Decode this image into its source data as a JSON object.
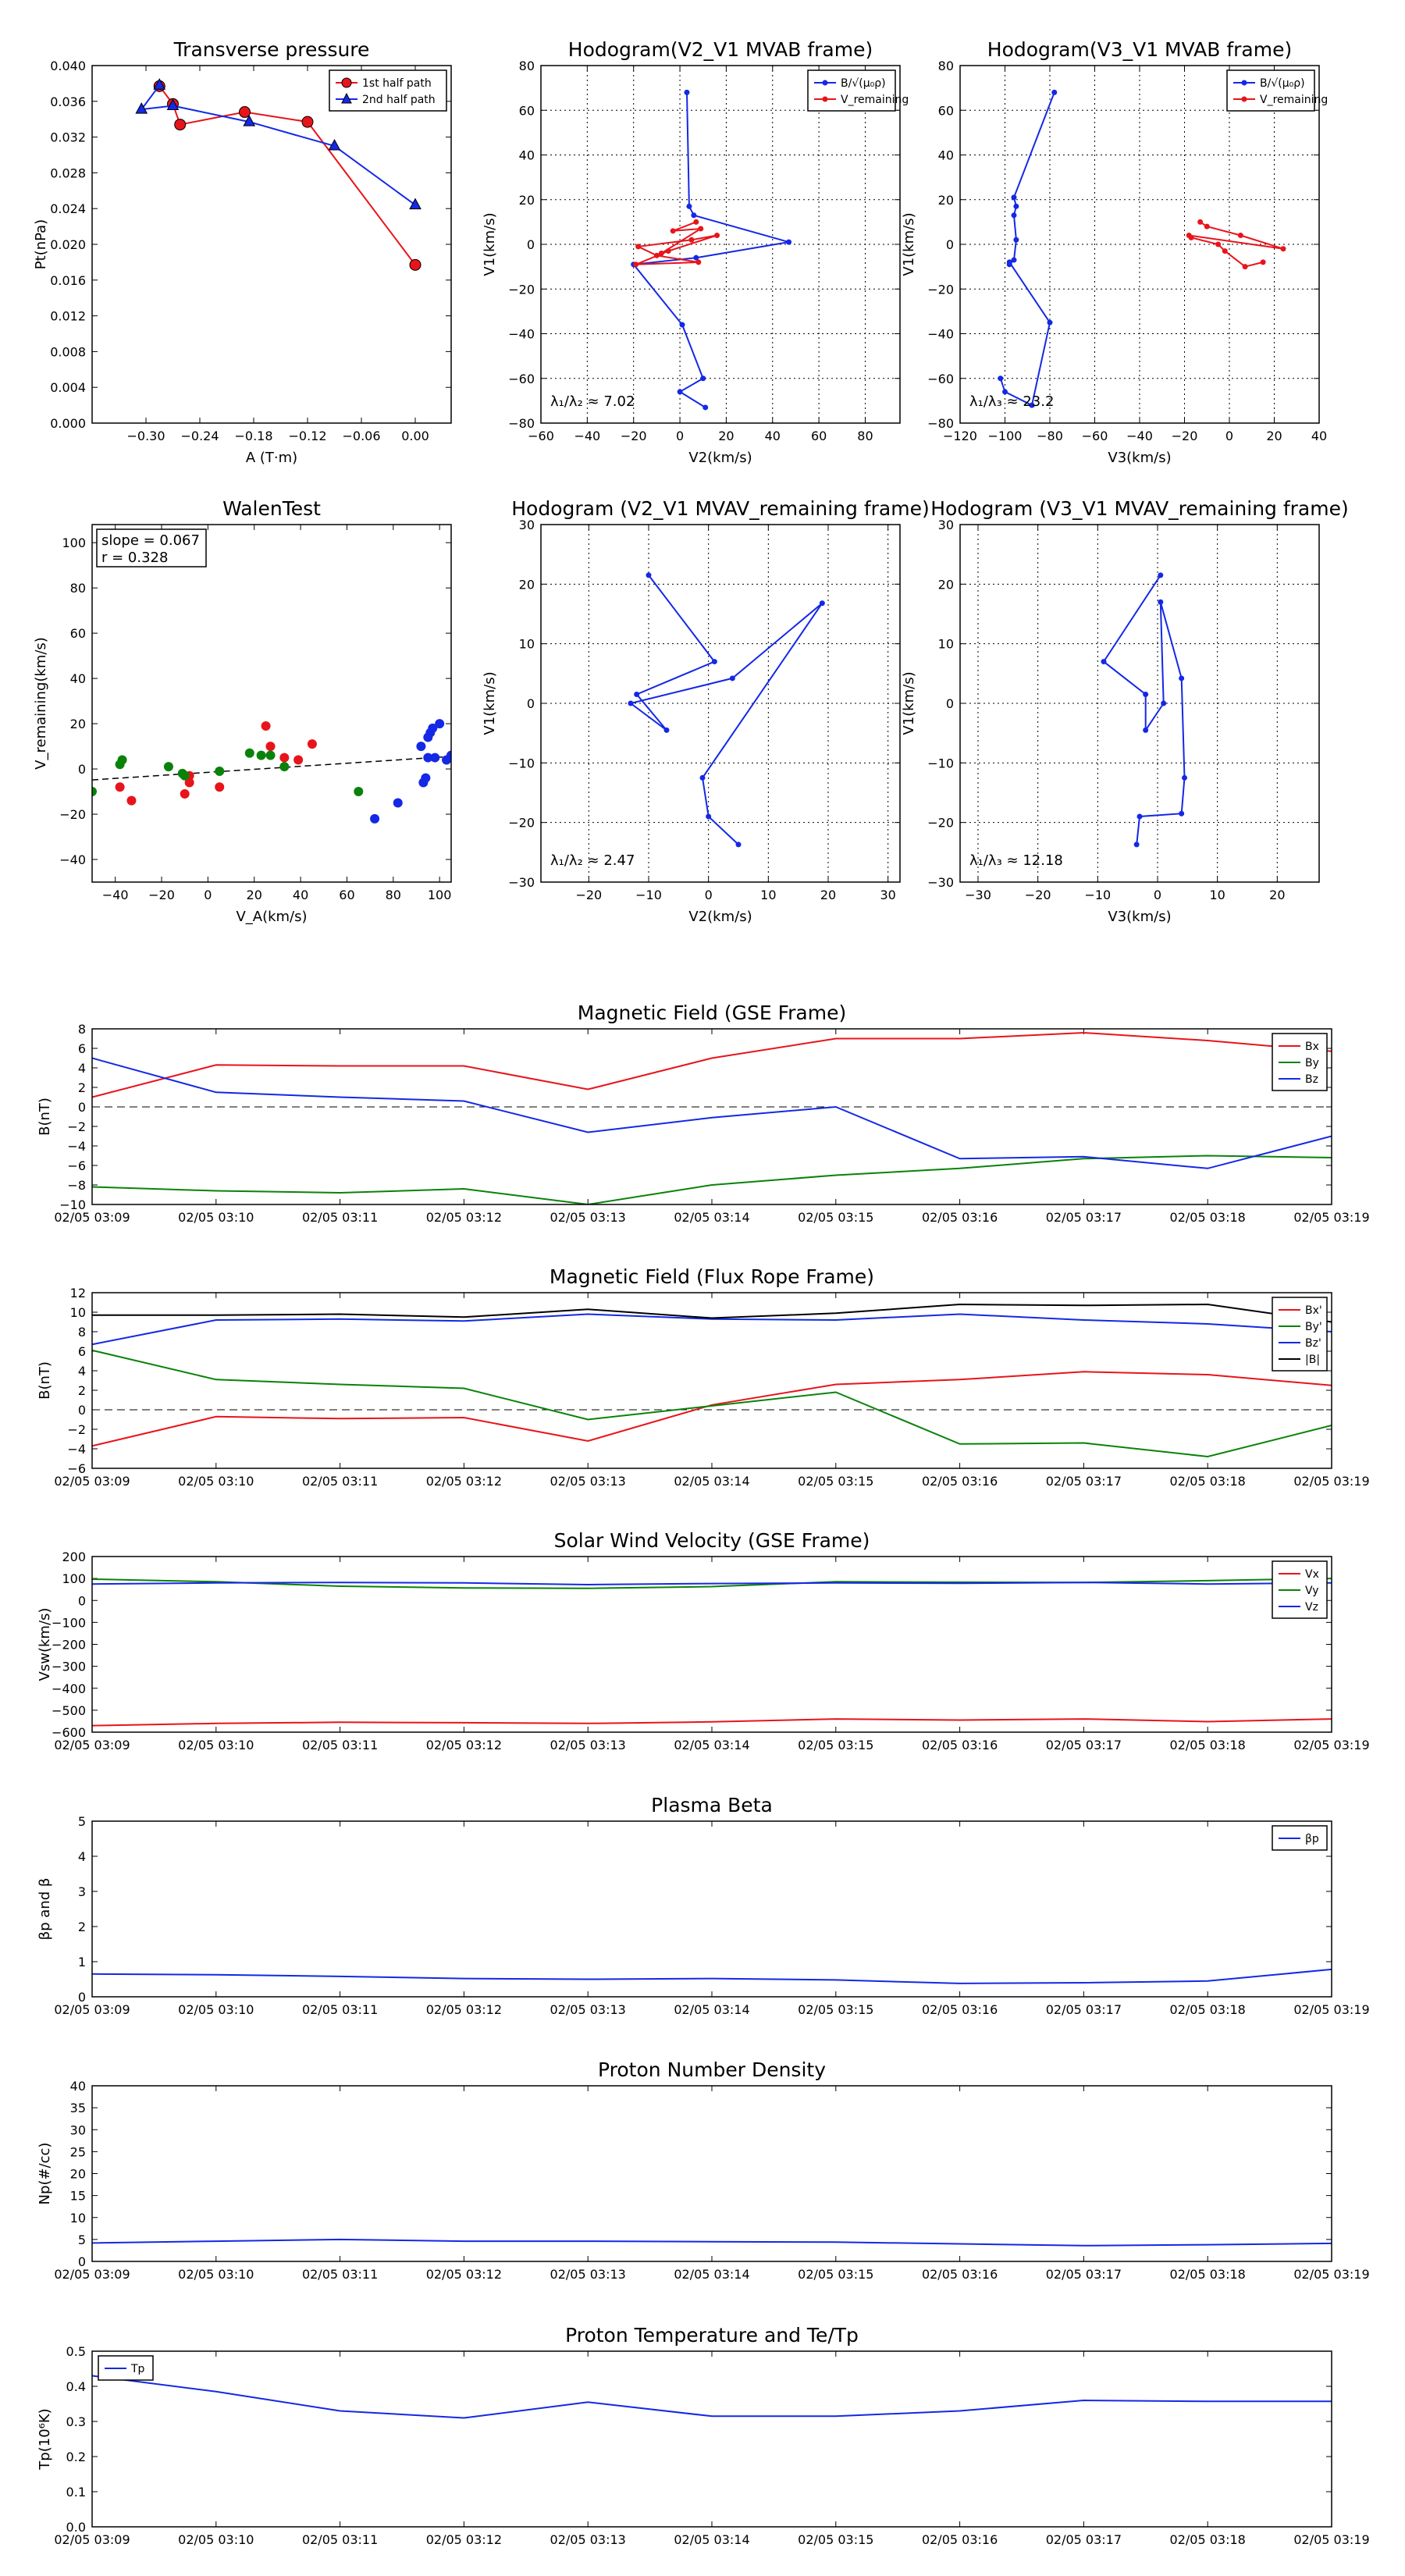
{
  "colors": {
    "red": "#e8141b",
    "blue": "#1428e6",
    "green": "#0a820a",
    "black": "#000000"
  },
  "chart_data": [
    {
      "id": "tp",
      "type": "line",
      "title": "Transverse pressure",
      "xlabel": "A (T·m)",
      "ylabel": "Pt(nPa)",
      "xlim": [
        -0.36,
        0.04
      ],
      "ylim": [
        0,
        0.04
      ],
      "xticks": [
        -0.3,
        -0.24,
        -0.18,
        -0.12,
        -0.06,
        0.0
      ],
      "xtick_labels": [
        "−0.30",
        "−0.24",
        "−0.18",
        "−0.12",
        "−0.06",
        "0.00"
      ],
      "yticks": [
        0,
        0.004,
        0.008,
        0.012,
        0.016,
        0.02,
        0.024,
        0.028,
        0.032,
        0.036,
        0.04
      ],
      "ytick_labels": [
        "0.000",
        "0.004",
        "0.008",
        "0.012",
        "0.016",
        "0.020",
        "0.024",
        "0.028",
        "0.032",
        "0.036",
        "0.040"
      ],
      "grid": false,
      "legend_position": "top-right",
      "series": [
        {
          "name": "1st half path",
          "color": "red",
          "marker": "circle",
          "x": [
            -0.285,
            -0.27,
            -0.262,
            -0.19,
            -0.12,
            0.0
          ],
          "y": [
            0.0377,
            0.0357,
            0.0334,
            0.0348,
            0.0337,
            0.0177
          ]
        },
        {
          "name": "2nd half path",
          "color": "blue",
          "marker": "triangle",
          "x": [
            -0.285,
            -0.305,
            -0.27,
            -0.185,
            -0.09,
            0.0
          ],
          "y": [
            0.0378,
            0.0351,
            0.0355,
            0.0337,
            0.031,
            0.0244
          ]
        }
      ]
    },
    {
      "id": "h1",
      "type": "line",
      "title": "Hodogram(V2_V1 MVAB frame)",
      "xlabel": "V2(km/s)",
      "ylabel": "V1(km/s)",
      "xlim": [
        -60,
        95
      ],
      "ylim": [
        -80,
        80
      ],
      "xticks": [
        -60,
        -40,
        -20,
        0,
        20,
        40,
        60,
        80
      ],
      "xtick_labels": [
        "−60",
        "−40",
        "−20",
        "0",
        "20",
        "40",
        "60",
        "80"
      ],
      "yticks": [
        -80,
        -60,
        -40,
        -20,
        0,
        20,
        40,
        60,
        80
      ],
      "ytick_labels": [
        "−80",
        "−60",
        "−40",
        "−20",
        "0",
        "20",
        "40",
        "60",
        "80"
      ],
      "grid": true,
      "legend_position": "top-right",
      "annotation": "λ₁/λ₂ ≈ 7.02",
      "series": [
        {
          "name": "B/√(μ₀ρ)",
          "color": "blue",
          "marker": "dot",
          "x": [
            3,
            4,
            6,
            47,
            7,
            -20,
            1,
            10,
            0,
            11
          ],
          "y": [
            68,
            17,
            13,
            1,
            -6,
            -9,
            -36,
            -60,
            -66,
            -73
          ]
        },
        {
          "name": "V_remaining",
          "color": "red",
          "marker": "dot",
          "x": [
            7,
            -3,
            9,
            -8,
            16,
            5,
            -18,
            -10,
            8,
            -19,
            -5
          ],
          "y": [
            10,
            6,
            7,
            -4,
            4,
            2,
            -1,
            -5,
            -8,
            -9,
            -3
          ]
        }
      ]
    },
    {
      "id": "h2",
      "type": "line",
      "title": "Hodogram(V3_V1 MVAB frame)",
      "xlabel": "V3(km/s)",
      "ylabel": "V1(km/s)",
      "xlim": [
        -120,
        40
      ],
      "ylim": [
        -80,
        80
      ],
      "xticks": [
        -120,
        -100,
        -80,
        -60,
        -40,
        -20,
        0,
        20,
        40
      ],
      "xtick_labels": [
        "−120",
        "−100",
        "−80",
        "−60",
        "−40",
        "−20",
        "0",
        "20",
        "40"
      ],
      "yticks": [
        -80,
        -60,
        -40,
        -20,
        0,
        20,
        40,
        60,
        80
      ],
      "ytick_labels": [
        "−80",
        "−60",
        "−40",
        "−20",
        "0",
        "20",
        "40",
        "60",
        "80"
      ],
      "grid": true,
      "legend_position": "top-right",
      "annotation": "λ₁/λ₃ ≈ 23.2",
      "series": [
        {
          "name": "B/√(μ₀ρ)",
          "color": "blue",
          "marker": "dot",
          "x": [
            -78,
            -96,
            -95,
            -96,
            -95,
            -96,
            -98,
            -98,
            -80,
            -88,
            -100,
            -102
          ],
          "y": [
            68,
            21,
            17,
            13,
            2,
            -7,
            -9,
            -8,
            -35,
            -72,
            -66,
            -60
          ]
        },
        {
          "name": "V_remaining",
          "color": "red",
          "marker": "dot",
          "x": [
            -13,
            -10,
            5,
            24,
            -18,
            -17,
            -5,
            -2,
            7,
            15
          ],
          "y": [
            10,
            8,
            4,
            -2,
            4,
            3,
            0,
            -3,
            -10,
            -8
          ]
        }
      ]
    },
    {
      "id": "walen",
      "type": "scatter",
      "title": "WalenTest",
      "xlabel": "V_A(km/s)",
      "ylabel": "V_remaining(km/s)",
      "xlim": [
        -50,
        105
      ],
      "ylim": [
        -50,
        108
      ],
      "xticks": [
        -40,
        -20,
        0,
        20,
        40,
        60,
        80,
        100
      ],
      "xtick_labels": [
        "−40",
        "−20",
        "0",
        "20",
        "40",
        "60",
        "80",
        "100"
      ],
      "yticks": [
        -40,
        -20,
        0,
        20,
        40,
        60,
        80,
        100
      ],
      "ytick_labels": [
        "−40",
        "−20",
        "0",
        "20",
        "40",
        "60",
        "80",
        "100"
      ],
      "grid": false,
      "legend_position": "top-left",
      "slope_text": "slope = 0.067",
      "r_text": "r = 0.328",
      "fit": {
        "slope": 0.067,
        "intercept": -1.5
      },
      "series": [
        {
          "name": "red",
          "color": "red",
          "x": [
            -38,
            -33,
            -10,
            -8,
            -8,
            5,
            25,
            27,
            33,
            39,
            45
          ],
          "y": [
            -8,
            -14,
            -11,
            -6,
            -3,
            -8,
            19,
            10,
            5,
            4,
            11
          ]
        },
        {
          "name": "green",
          "color": "green",
          "x": [
            -38,
            -37,
            -17,
            -11,
            -10,
            5,
            18,
            23,
            27,
            33,
            65,
            -50
          ],
          "y": [
            2,
            4,
            1,
            -2,
            -3,
            -1,
            7,
            6,
            6,
            1,
            -10,
            -10
          ]
        },
        {
          "name": "blue",
          "color": "blue",
          "x": [
            72,
            82,
            93,
            94,
            95,
            96,
            97,
            98,
            100,
            103,
            105,
            92,
            95
          ],
          "y": [
            -22,
            -15,
            -6,
            -4,
            14,
            16,
            18,
            5,
            20,
            4,
            6,
            10,
            5
          ]
        }
      ]
    },
    {
      "id": "h3",
      "type": "line",
      "title": "Hodogram (V2_V1 MVAV_remaining frame)",
      "xlabel": "V2(km/s)",
      "ylabel": "V1(km/s)",
      "xlim": [
        -28,
        32
      ],
      "ylim": [
        -30,
        30
      ],
      "xticks": [
        -20,
        -10,
        0,
        10,
        20,
        30
      ],
      "xtick_labels": [
        "−20",
        "−10",
        "0",
        "10",
        "20",
        "30"
      ],
      "yticks": [
        -30,
        -20,
        -10,
        0,
        10,
        20,
        30
      ],
      "ytick_labels": [
        "−30",
        "−20",
        "−10",
        "0",
        "10",
        "20",
        "30"
      ],
      "grid": true,
      "legend_position": "none",
      "annotation": "λ₁/λ₂ ≈ 2.47",
      "series": [
        {
          "name": "V_remaining",
          "color": "blue",
          "marker": "dot",
          "x": [
            -10,
            1,
            -12,
            -7,
            -13,
            4,
            19,
            -1,
            0,
            5
          ],
          "y": [
            21.5,
            7,
            1.5,
            -4.5,
            0,
            4.2,
            16.8,
            -12.5,
            -19,
            -23.7
          ]
        }
      ]
    },
    {
      "id": "h4",
      "type": "line",
      "title": "Hodogram (V3_V1 MVAV_remaining frame)",
      "xlabel": "V3(km/s)",
      "ylabel": "V1(km/s)",
      "xlim": [
        -33,
        27
      ],
      "ylim": [
        -30,
        30
      ],
      "xticks": [
        -30,
        -20,
        -10,
        0,
        10,
        20
      ],
      "xtick_labels": [
        "−30",
        "−20",
        "−10",
        "0",
        "10",
        "20"
      ],
      "yticks": [
        -30,
        -20,
        -10,
        0,
        10,
        20,
        30
      ],
      "ytick_labels": [
        "−30",
        "−20",
        "−10",
        "0",
        "10",
        "20",
        "30"
      ],
      "grid": true,
      "legend_position": "none",
      "annotation": "λ₁/λ₃ ≈ 12.18",
      "series": [
        {
          "name": "V_remaining",
          "color": "blue",
          "marker": "dot",
          "x": [
            0.5,
            -9,
            -2,
            -2,
            1,
            0.5,
            4,
            4.5,
            4,
            -3,
            -3.5
          ],
          "y": [
            21.5,
            7,
            1.5,
            -4.5,
            0,
            17,
            4.2,
            -12.5,
            -18.5,
            -19,
            -23.7
          ]
        }
      ]
    },
    {
      "id": "ts1",
      "type": "line",
      "title": "Magnetic Field (GSE Frame)",
      "ylabel": "B(nT)",
      "ylim": [
        -10,
        8
      ],
      "yticks": [
        -10,
        -8,
        -6,
        -4,
        -2,
        0,
        2,
        4,
        6,
        8
      ],
      "ytick_labels": [
        "−10",
        "−8",
        "−6",
        "−4",
        "−2",
        "0",
        "2",
        "4",
        "6",
        "8"
      ],
      "zero_line": true,
      "legend_position": "top-right",
      "series": [
        {
          "name": "Bx",
          "color": "red",
          "values": [
            1,
            4.3,
            4.2,
            4.2,
            1.8,
            5,
            7,
            7,
            7.6,
            6.8,
            5.7
          ]
        },
        {
          "name": "By",
          "color": "green",
          "values": [
            -8.2,
            -8.6,
            -8.8,
            -8.4,
            -10,
            -8,
            -7,
            -6.3,
            -5.3,
            -5,
            -5.2
          ]
        },
        {
          "name": "Bz",
          "color": "blue",
          "values": [
            5,
            1.5,
            1,
            0.6,
            -2.6,
            -1.1,
            0,
            -5.3,
            -5.1,
            -6.3,
            -3
          ]
        }
      ]
    },
    {
      "id": "ts2",
      "type": "line",
      "title": "Magnetic Field (Flux Rope Frame)",
      "ylabel": "B(nT)",
      "ylim": [
        -6,
        12
      ],
      "yticks": [
        -6,
        -4,
        -2,
        0,
        2,
        4,
        6,
        8,
        10,
        12
      ],
      "ytick_labels": [
        "−6",
        "−4",
        "−2",
        "0",
        "2",
        "4",
        "6",
        "8",
        "10",
        "12"
      ],
      "zero_line": true,
      "legend_position": "top-right",
      "series": [
        {
          "name": "Bx'",
          "color": "red",
          "values": [
            -3.7,
            -0.7,
            -0.9,
            -0.8,
            -3.2,
            0.5,
            2.6,
            3.1,
            3.9,
            3.6,
            2.5
          ]
        },
        {
          "name": "By'",
          "color": "green",
          "values": [
            6.1,
            3.1,
            2.6,
            2.2,
            -1,
            0.4,
            1.8,
            -3.5,
            -3.4,
            -4.8,
            -1.6
          ]
        },
        {
          "name": "Bz'",
          "color": "blue",
          "values": [
            6.7,
            9.2,
            9.3,
            9.1,
            9.8,
            9.3,
            9.2,
            9.8,
            9.2,
            8.8,
            8
          ]
        },
        {
          "name": "|B|",
          "color": "black",
          "values": [
            9.7,
            9.7,
            9.8,
            9.5,
            10.3,
            9.4,
            9.9,
            10.8,
            10.7,
            10.8,
            9
          ]
        }
      ]
    },
    {
      "id": "ts3",
      "type": "line",
      "title": "Solar Wind Velocity (GSE Frame)",
      "ylabel": "Vsw(km/s)",
      "ylim": [
        -600,
        200
      ],
      "yticks": [
        -600,
        -500,
        -400,
        -300,
        -200,
        -100,
        0,
        100,
        200
      ],
      "ytick_labels": [
        "−600",
        "−500",
        "−400",
        "−300",
        "−200",
        "−100",
        "0",
        "100",
        "200"
      ],
      "zero_line": false,
      "legend_position": "top-right",
      "series": [
        {
          "name": "Vx",
          "color": "red",
          "values": [
            -570,
            -560,
            -555,
            -557,
            -560,
            -553,
            -540,
            -545,
            -540,
            -552,
            -540
          ]
        },
        {
          "name": "Vy",
          "color": "green",
          "values": [
            97,
            85,
            65,
            57,
            55,
            63,
            85,
            83,
            82,
            90,
            100
          ]
        },
        {
          "name": "Vz",
          "color": "blue",
          "values": [
            75,
            80,
            82,
            80,
            72,
            77,
            80,
            78,
            82,
            75,
            80
          ]
        }
      ]
    },
    {
      "id": "ts4",
      "type": "line",
      "title": "Plasma Beta",
      "ylabel": "βp and β",
      "ylim": [
        0,
        5
      ],
      "yticks": [
        0,
        1,
        2,
        3,
        4,
        5
      ],
      "ytick_labels": [
        "0",
        "1",
        "2",
        "3",
        "4",
        "5"
      ],
      "zero_line": false,
      "legend_position": "top-right",
      "series": [
        {
          "name": "βp",
          "color": "blue",
          "values": [
            0.65,
            0.63,
            0.58,
            0.52,
            0.5,
            0.52,
            0.48,
            0.38,
            0.4,
            0.45,
            0.78
          ]
        }
      ]
    },
    {
      "id": "ts5",
      "type": "line",
      "title": "Proton Number Density",
      "ylabel": "Np(#/cc)",
      "ylim": [
        0,
        40
      ],
      "yticks": [
        0,
        5,
        10,
        15,
        20,
        25,
        30,
        35,
        40
      ],
      "ytick_labels": [
        "0",
        "5",
        "10",
        "15",
        "20",
        "25",
        "30",
        "35",
        "40"
      ],
      "zero_line": false,
      "legend_position": "none",
      "series": [
        {
          "name": "Np",
          "color": "blue",
          "values": [
            4.2,
            4.6,
            5,
            4.6,
            4.6,
            4.5,
            4.4,
            4,
            3.6,
            3.8,
            4.1
          ]
        }
      ]
    },
    {
      "id": "ts6",
      "type": "line",
      "title": "Proton Temperature and Te/Tp",
      "ylabel": "Tp(10⁶K)",
      "ylim": [
        0,
        0.5
      ],
      "yticks": [
        0,
        0.1,
        0.2,
        0.3,
        0.4,
        0.5
      ],
      "ytick_labels": [
        "0.0",
        "0.1",
        "0.2",
        "0.3",
        "0.4",
        "0.5"
      ],
      "zero_line": false,
      "legend_position": "top-left",
      "series": [
        {
          "name": "Tp",
          "color": "blue",
          "values": [
            0.43,
            0.385,
            0.33,
            0.31,
            0.355,
            0.315,
            0.315,
            0.33,
            0.36,
            0.357,
            0.357
          ]
        }
      ]
    }
  ],
  "time_labels": [
    "02/05 03:09",
    "02/05 03:10",
    "02/05 03:11",
    "02/05 03:12",
    "02/05 03:13",
    "02/05 03:14",
    "02/05 03:15",
    "02/05 03:16",
    "02/05 03:17",
    "02/05 03:18",
    "02/05 03:19"
  ]
}
